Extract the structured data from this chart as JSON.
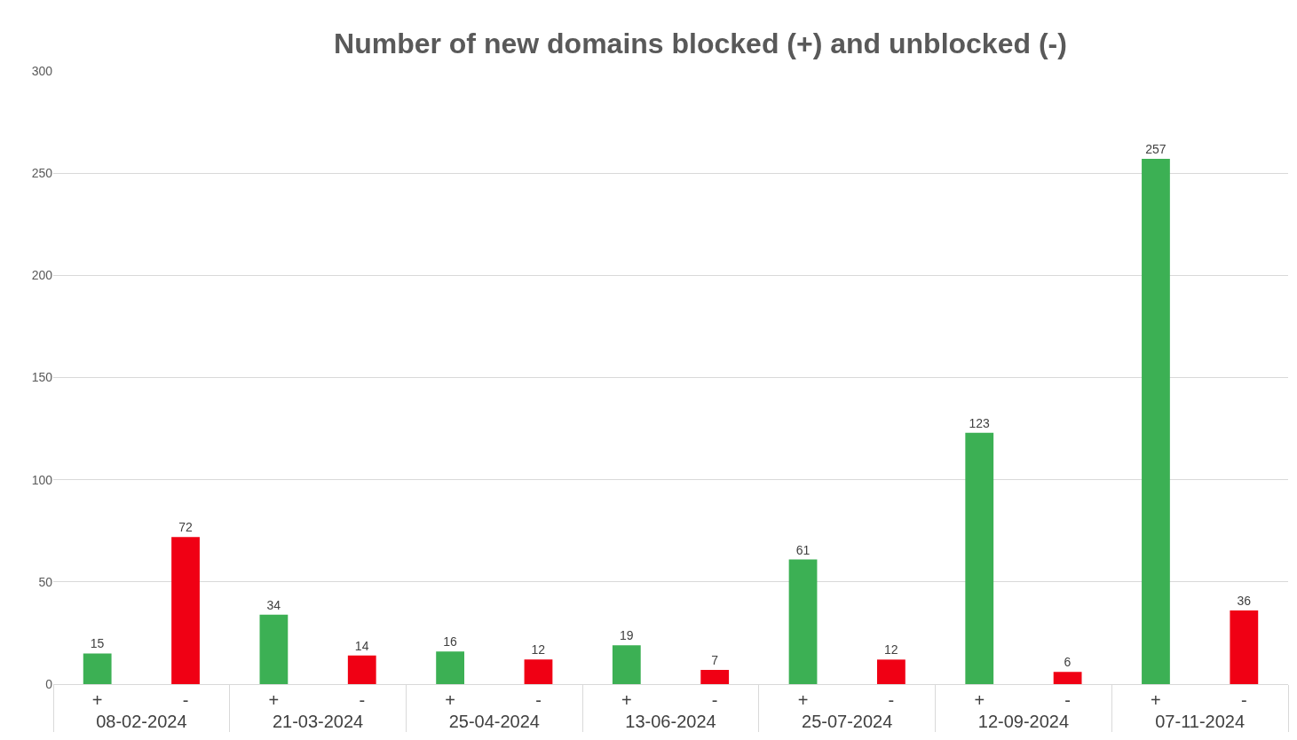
{
  "chart_data": {
    "type": "bar",
    "title": "Number of new domains blocked (+) and unblocked (-)",
    "categories": [
      "08-02-2024",
      "21-03-2024",
      "25-04-2024",
      "13-06-2024",
      "25-07-2024",
      "12-09-2024",
      "07-11-2024"
    ],
    "series": [
      {
        "name": "+",
        "color": "#3cb054",
        "values": [
          15,
          34,
          16,
          19,
          61,
          123,
          257
        ]
      },
      {
        "name": "-",
        "color": "#f00014",
        "values": [
          72,
          14,
          12,
          7,
          12,
          6,
          36
        ]
      }
    ],
    "ylim": [
      0,
      300
    ],
    "yticks": [
      0,
      50,
      100,
      150,
      200,
      250,
      300
    ],
    "grid": "y",
    "legend": false,
    "data_labels": true
  }
}
